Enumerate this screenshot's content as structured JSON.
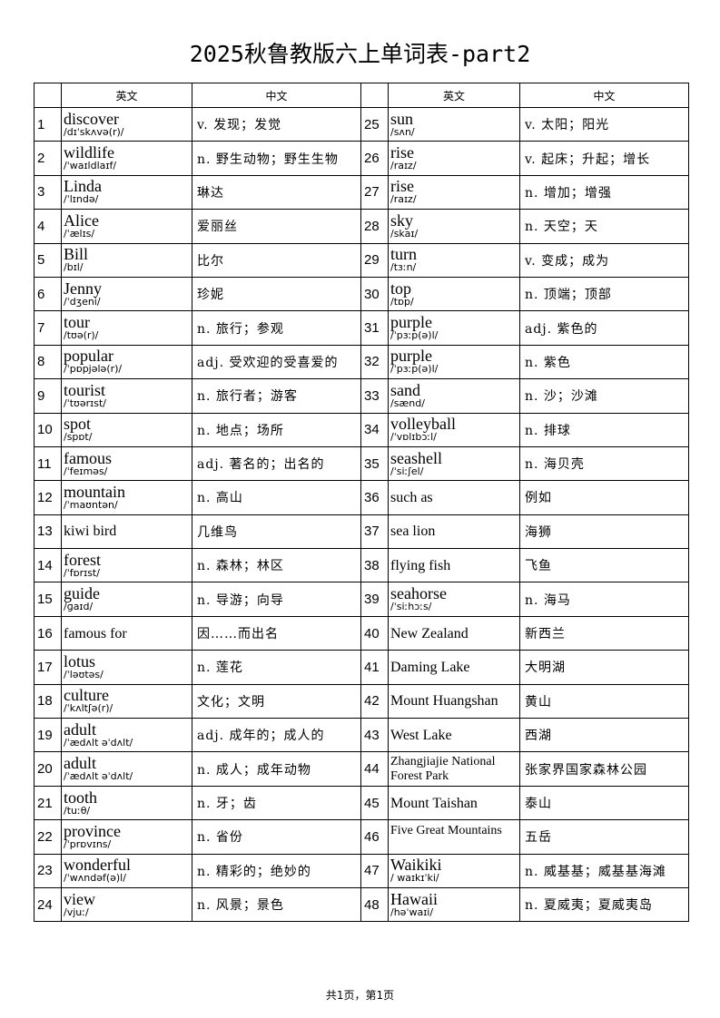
{
  "title": "2025秋鲁教版六上单词表-part2",
  "headers": {
    "en": "英文",
    "cn": "中文"
  },
  "rows": [
    {
      "n": "1",
      "en": "discover",
      "ph": "/dɪˈskʌvə(r)/",
      "cn": "v. 发现；发觉"
    },
    {
      "n": "2",
      "en": "wildlife",
      "ph": "/ˈwaɪldlaɪf/",
      "cn": "n. 野生动物；野生生物"
    },
    {
      "n": "3",
      "en": "Linda",
      "ph": "/ˈlɪndə/",
      "cn": "琳达"
    },
    {
      "n": "4",
      "en": "Alice",
      "ph": "/ˈælɪs/",
      "cn": "爱丽丝"
    },
    {
      "n": "5",
      "en": "Bill",
      "ph": "/bɪl/",
      "cn": "比尔"
    },
    {
      "n": "6",
      "en": "Jenny",
      "ph": "/ˈdʒeni/",
      "cn": "珍妮"
    },
    {
      "n": "7",
      "en": "tour",
      "ph": "/tʊə(r)/",
      "cn": "n. 旅行；参观"
    },
    {
      "n": "8",
      "en": "popular",
      "ph": "/ˈpɒpjələ(r)/",
      "cn": "adj. 受欢迎的受喜爱的"
    },
    {
      "n": "9",
      "en": "tourist",
      "ph": "/ˈtʊərɪst/",
      "cn": "n. 旅行者；游客"
    },
    {
      "n": "10",
      "en": "spot",
      "ph": "/spɒt/",
      "cn": "n. 地点；场所"
    },
    {
      "n": "11",
      "en": "famous",
      "ph": "/ˈfeɪməs/",
      "cn": "adj. 著名的；出名的"
    },
    {
      "n": "12",
      "en": "mountain",
      "ph": "/ˈmaʊntən/",
      "cn": "n. 高山"
    },
    {
      "n": "13",
      "en": "kiwi bird",
      "ph": "",
      "cn": "几维鸟"
    },
    {
      "n": "14",
      "en": "forest",
      "ph": "/ˈfɒrɪst/",
      "cn": "n. 森林；林区"
    },
    {
      "n": "15",
      "en": "guide",
      "ph": "/ɡaɪd/",
      "cn": "n. 导游；向导"
    },
    {
      "n": "16",
      "en": "famous for",
      "ph": "",
      "cn": "因……而出名"
    },
    {
      "n": "17",
      "en": "lotus",
      "ph": "/ˈləʊtəs/",
      "cn": "n. 莲花"
    },
    {
      "n": "18",
      "en": "culture",
      "ph": "/ˈkʌltʃə(r)/",
      "cn": "文化；文明"
    },
    {
      "n": "19",
      "en": "adult",
      "ph": "/ˈædʌlt əˈdʌlt/",
      "cn": "adj. 成年的；成人的"
    },
    {
      "n": "20",
      "en": "adult",
      "ph": "/ˈædʌlt əˈdʌlt/",
      "cn": "n. 成人；成年动物"
    },
    {
      "n": "21",
      "en": "tooth",
      "ph": "/tuːθ/",
      "cn": "n. 牙；齿"
    },
    {
      "n": "22",
      "en": "province",
      "ph": "/ˈprɒvɪns/",
      "cn": "n. 省份"
    },
    {
      "n": "23",
      "en": "wonderful",
      "ph": "/ˈwʌndəf(ə)l/",
      "cn": "n. 精彩的；绝妙的"
    },
    {
      "n": "24",
      "en": "view",
      "ph": "/vjuː/",
      "cn": "n. 风景；景色"
    },
    {
      "n": "25",
      "en": "sun",
      "ph": "/sʌn/",
      "cn": "v. 太阳；阳光"
    },
    {
      "n": "26",
      "en": "rise",
      "ph": "/raɪz/",
      "cn": "v. 起床；升起；增长"
    },
    {
      "n": "27",
      "en": "rise",
      "ph": "/raɪz/",
      "cn": "n. 增加；增强"
    },
    {
      "n": "28",
      "en": "sky",
      "ph": "/skaɪ/",
      "cn": "n. 天空；天"
    },
    {
      "n": "29",
      "en": "turn",
      "ph": "/tɜːn/",
      "cn": "v. 变成；成为"
    },
    {
      "n": "30",
      "en": "top",
      "ph": "/tɒp/",
      "cn": "n. 顶端；顶部"
    },
    {
      "n": "31",
      "en": "purple",
      "ph": "/ˈpɜːp(ə)l/",
      "cn": "adj. 紫色的"
    },
    {
      "n": "32",
      "en": "purple",
      "ph": "/ˈpɜːp(ə)l/",
      "cn": "n. 紫色"
    },
    {
      "n": "33",
      "en": "sand",
      "ph": "/sænd/",
      "cn": "n. 沙；沙滩"
    },
    {
      "n": "34",
      "en": "volleyball",
      "ph": "/ˈvɒlɪbɔːl/",
      "cn": "n. 排球"
    },
    {
      "n": "35",
      "en": "seashell",
      "ph": "/ˈsiːʃel/",
      "cn": "n. 海贝壳"
    },
    {
      "n": "36",
      "en": "such as",
      "ph": "",
      "cn": "例如"
    },
    {
      "n": "37",
      "en": "sea lion",
      "ph": "",
      "cn": "海狮"
    },
    {
      "n": "38",
      "en": "flying fish",
      "ph": "",
      "cn": "飞鱼"
    },
    {
      "n": "39",
      "en": "seahorse",
      "ph": "/ˈsiːhɔːs/",
      "cn": "n. 海马"
    },
    {
      "n": "40",
      "en": "New Zealand",
      "ph": "",
      "cn": "新西兰"
    },
    {
      "n": "41",
      "en": "Daming Lake",
      "ph": "",
      "cn": "大明湖"
    },
    {
      "n": "42",
      "en": "Mount Huangshan",
      "ph": "",
      "cn": "黄山"
    },
    {
      "n": "43",
      "en": "West Lake",
      "ph": "",
      "cn": "西湖"
    },
    {
      "n": "44",
      "en": "Zhangjiajie National Forest Park",
      "ph": "",
      "cn": "张家界国家森林公园"
    },
    {
      "n": "45",
      "en": "Mount Taishan",
      "ph": "",
      "cn": "泰山"
    },
    {
      "n": "46",
      "en": "Five Great Mountains",
      "ph": "",
      "cn": "五岳"
    },
    {
      "n": "47",
      "en": "Waikiki",
      "ph": "/ waɪkɪˈki/",
      "cn": "n. 威基基；威基基海滩"
    },
    {
      "n": "48",
      "en": "Hawaii",
      "ph": "/həˈwaɪi/",
      "cn": "n. 夏威夷；夏威夷岛"
    }
  ],
  "footer": "共1页，第1页"
}
